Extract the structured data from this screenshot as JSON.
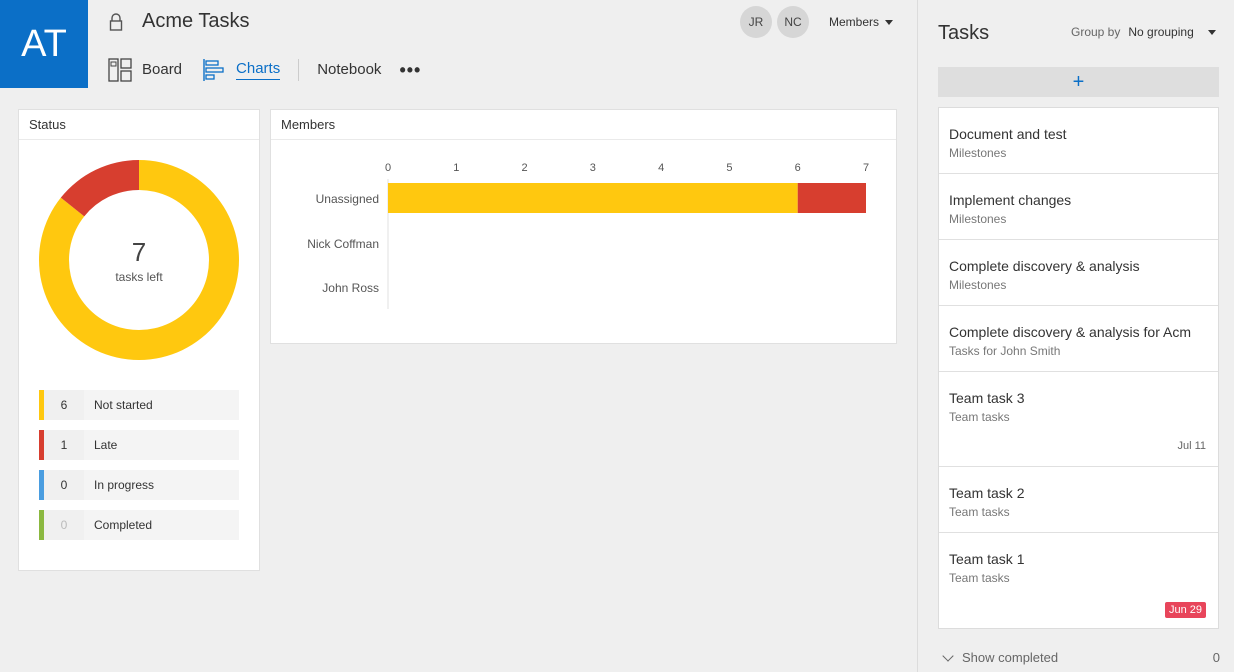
{
  "header": {
    "logo_initials": "AT",
    "title": "Acme Tasks",
    "nav": [
      {
        "label": "Board",
        "icon": "board-icon"
      },
      {
        "label": "Charts",
        "icon": "charts-icon",
        "active": true
      },
      {
        "label": "Notebook"
      }
    ],
    "more_label": "•••",
    "avatars": [
      "JR",
      "NC"
    ],
    "members_label": "Members"
  },
  "status": {
    "heading": "Status",
    "tasks_left_count": "7",
    "tasks_left_label": "tasks left",
    "legend": [
      {
        "count": "6",
        "label": "Not started",
        "color": "#ffc80f"
      },
      {
        "count": "1",
        "label": "Late",
        "color": "#d73e2f"
      },
      {
        "count": "0",
        "label": "In progress",
        "color": "#4a9de0"
      },
      {
        "count": "0",
        "label": "Completed",
        "color": "#8bb840"
      }
    ]
  },
  "members_chart": {
    "heading": "Members"
  },
  "chart_data": {
    "type": "bar",
    "orientation": "horizontal",
    "stacked": true,
    "categories": [
      "Unassigned",
      "Nick Coffman",
      "John Ross"
    ],
    "series": [
      {
        "name": "Not started",
        "color": "#ffc80f",
        "values": [
          6,
          0,
          0
        ]
      },
      {
        "name": "Late",
        "color": "#d73e2f",
        "values": [
          1,
          0,
          0
        ]
      }
    ],
    "xticks": [
      "0",
      "1",
      "2",
      "3",
      "4",
      "5",
      "6",
      "7"
    ],
    "xlim": [
      0,
      7
    ]
  },
  "tasks_panel": {
    "title": "Tasks",
    "group_by_label": "Group by",
    "group_by_value": "No grouping",
    "add_label": "+",
    "tasks": [
      {
        "title": "Document and test",
        "bucket": "Milestones",
        "date": ""
      },
      {
        "title": "Implement changes",
        "bucket": "Milestones",
        "date": ""
      },
      {
        "title": "Complete discovery & analysis",
        "bucket": "Milestones",
        "date": ""
      },
      {
        "title": "Complete discovery & analysis for Acm",
        "bucket": "Tasks for John Smith",
        "date": ""
      },
      {
        "title": "Team task 3",
        "bucket": "Team tasks",
        "date": "Jul 11"
      },
      {
        "title": "Team task 2",
        "bucket": "Team tasks",
        "date": ""
      },
      {
        "title": "Team task 1",
        "bucket": "Team tasks",
        "date": "Jun 29",
        "late": true
      }
    ],
    "show_completed_label": "Show completed",
    "completed_count": "0"
  }
}
